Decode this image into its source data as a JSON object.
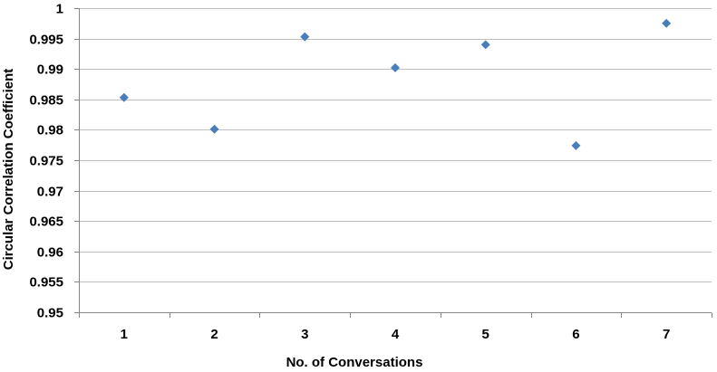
{
  "chart_data": {
    "type": "scatter",
    "title": "",
    "xlabel": "No. of Conversations",
    "ylabel": "Circular Correlation Coefficient",
    "x_ticks": [
      "1",
      "2",
      "3",
      "4",
      "5",
      "6",
      "7"
    ],
    "y_ticks": [
      "0.95",
      "0.955",
      "0.96",
      "0.965",
      "0.97",
      "0.975",
      "0.98",
      "0.985",
      "0.99",
      "0.995",
      "1"
    ],
    "ylim": [
      0.95,
      1.0
    ],
    "xlim": [
      0.5,
      7.5
    ],
    "grid": "horizontal",
    "legend": "none",
    "marker": "diamond",
    "colors": {
      "marker": "#4a7ebb",
      "grid": "#c0c0c0",
      "axis": "#868686"
    },
    "series": [
      {
        "points": [
          {
            "x": 1,
            "y": 0.9853
          },
          {
            "x": 2,
            "y": 0.9801
          },
          {
            "x": 3,
            "y": 0.9953
          },
          {
            "x": 4,
            "y": 0.9902
          },
          {
            "x": 5,
            "y": 0.994
          },
          {
            "x": 6,
            "y": 0.9774
          },
          {
            "x": 7,
            "y": 0.9975
          }
        ]
      }
    ]
  }
}
